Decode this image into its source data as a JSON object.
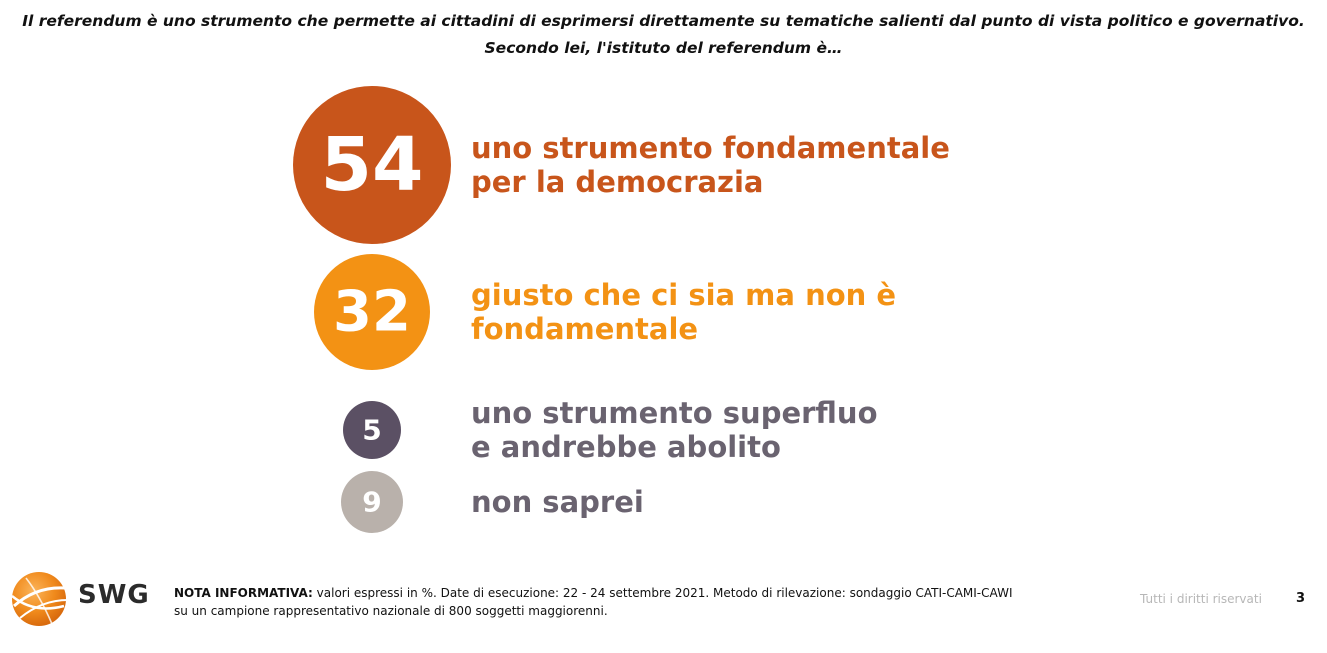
{
  "question": {
    "line1": "Il referendum è uno strumento che permette ai cittadini di esprimersi direttamente su tematiche salienti dal punto di vista politico e governativo.",
    "line2": "Secondo lei, l'istituto del referendum è…"
  },
  "chart_data": {
    "type": "bubble",
    "unit": "%",
    "series": [
      {
        "value": 54,
        "label_lines": [
          "uno strumento fondamentale",
          "per la democrazia"
        ],
        "color": "#c8551b"
      },
      {
        "value": 32,
        "label_lines": [
          "giusto che ci sia ma non è",
          "fondamentale"
        ],
        "color": "#f39214"
      },
      {
        "value": 5,
        "label_lines": [
          "uno strumento superfluo",
          "e andrebbe abolito"
        ],
        "color": "#5b5064"
      },
      {
        "value": 9,
        "label_lines": [
          "non saprei"
        ],
        "color": "#b9b1ab"
      }
    ],
    "label_text_color_muted": "#6a6370"
  },
  "footer": {
    "logo_text": "SWG",
    "note_bold": "NOTA INFORMATIVA:",
    "note_line1": " valori espressi in %. Date di esecuzione: 22 - 24 settembre 2021. Metodo di rilevazione: sondaggio CATI-CAMI-CAWI",
    "note_line2": "su un campione rappresentativo nazionale di 800 soggetti maggiorenni.",
    "rights": "Tutti i diritti riservati",
    "page_number": "3"
  }
}
